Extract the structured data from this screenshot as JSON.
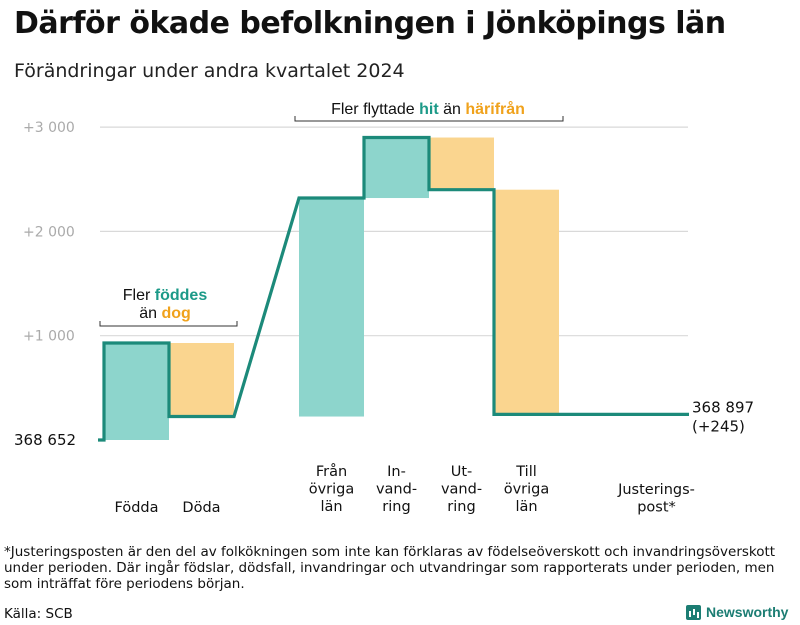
{
  "title": "Därför ökade befolkningen i Jönköpings län",
  "subtitle": "Förändringar under andra kvartalet 2024",
  "footnote": "*Justeringsposten är den del av folkökningen som inte kan förklaras av födelseöverskott och invandringsöverskott under perioden. Där ingår födslar, dödsfall, invandringar och utvandringar som rapporterats under perioden, men som inträffat före periodens början.",
  "source": "Källa: SCB",
  "logo_text": "Newsworthy",
  "colors": {
    "increase": "#8dd5cc",
    "decrease": "#fad58f",
    "line": "#1c8a7a",
    "grid": "#d9d9d9",
    "teal_text": "#1c9a88",
    "orange_text": "#f0a21c"
  },
  "chart_data": {
    "type": "waterfall",
    "start_value": 368652,
    "start_label": "368  652",
    "end_value": 368897,
    "end_label": "368 897",
    "end_change_label": "(+245)",
    "y_axis": {
      "min": 0,
      "max": 3000,
      "ticks": [
        {
          "value": 1000,
          "label": "+1  000"
        },
        {
          "value": 2000,
          "label": "+2  000"
        },
        {
          "value": 3000,
          "label": "+3  000"
        }
      ]
    },
    "bars": [
      {
        "label": [
          "Födda"
        ],
        "from": 0,
        "to": 930,
        "kind": "increase"
      },
      {
        "label": [
          "Döda"
        ],
        "from": 930,
        "to": 225,
        "kind": "decrease"
      },
      {
        "label": [
          "Från",
          "övriga",
          "län"
        ],
        "from": 225,
        "to": 2320,
        "kind": "increase"
      },
      {
        "label": [
          "In-",
          "vand-",
          "ring"
        ],
        "from": 2320,
        "to": 2900,
        "kind": "increase"
      },
      {
        "label": [
          "Ut-",
          "vand-",
          "ring"
        ],
        "from": 2900,
        "to": 2400,
        "kind": "decrease"
      },
      {
        "label": [
          "Till",
          "övriga",
          "län"
        ],
        "from": 2400,
        "to": 245,
        "kind": "decrease"
      },
      {
        "label": [
          "Justerings-",
          "post*"
        ],
        "from": 245,
        "to": 245,
        "kind": "adjust"
      }
    ],
    "annotations": [
      {
        "parts": [
          [
            "Fler ",
            "normal"
          ],
          [
            "föddes",
            "teal"
          ]
        ],
        "line2": [
          [
            "än ",
            "normal"
          ],
          [
            "dog",
            "orange"
          ]
        ]
      },
      {
        "parts": [
          [
            "Fler flyttade ",
            "normal"
          ],
          [
            "hit",
            "teal"
          ],
          [
            "  än ",
            "normal"
          ],
          [
            "härifrån",
            "orange"
          ]
        ]
      }
    ]
  }
}
